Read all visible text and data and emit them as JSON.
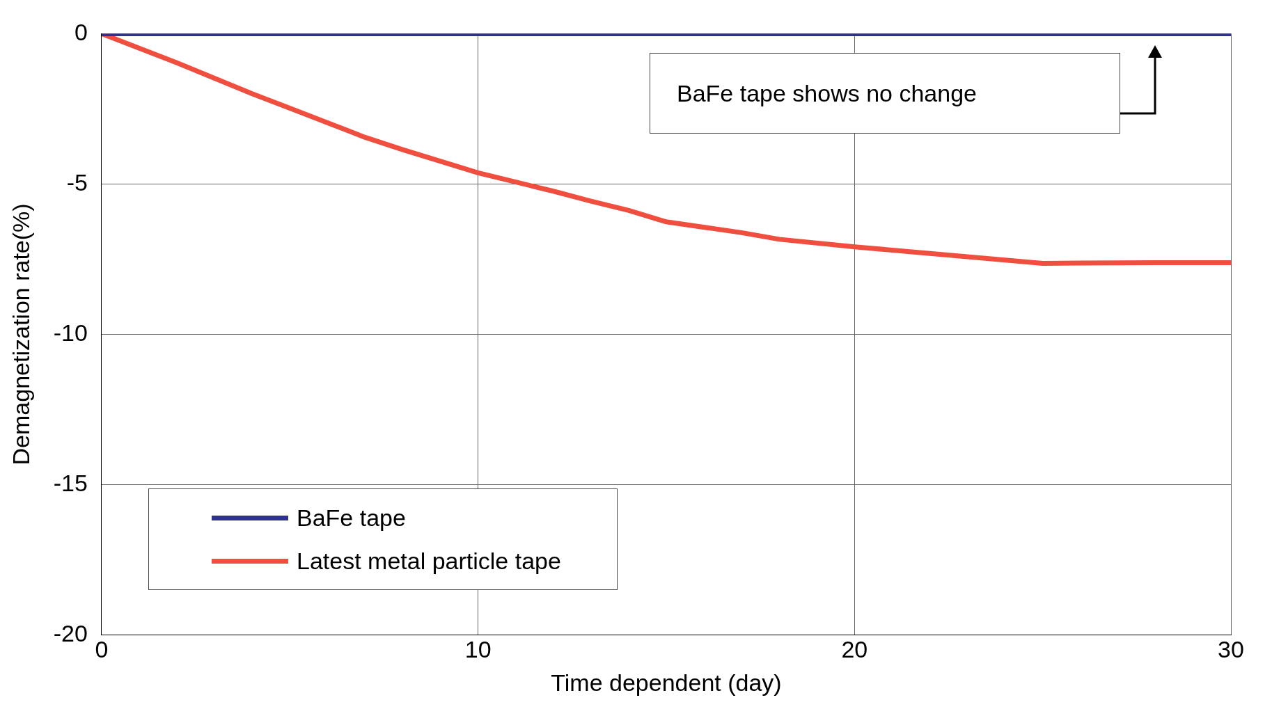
{
  "chart_data": {
    "type": "line",
    "xlabel": "Time dependent (day)",
    "ylabel": "Demagnetization rate(%)",
    "xlim": [
      0,
      30
    ],
    "xticks": [
      0,
      10,
      20,
      30
    ],
    "ylim": [
      -20,
      0
    ],
    "yticks": [
      -20,
      -15,
      -10,
      -5,
      0
    ],
    "grid": true,
    "legend": "bottom left",
    "marker": "none",
    "annotations": [
      "BaFe tape shows no change"
    ],
    "series": [
      {
        "name": "BaFe tape",
        "color": "#2e3192",
        "x": [
          0,
          30
        ],
        "values": [
          0,
          0
        ]
      },
      {
        "name": "Latest metal particle tape",
        "color": "#f04e3e",
        "x": [
          0,
          2,
          4,
          5,
          7,
          8,
          10,
          12,
          13,
          14,
          15,
          17,
          18,
          20,
          22,
          23,
          24,
          25,
          26,
          28,
          30
        ],
        "values": [
          0,
          -0.97,
          -2.0,
          -2.48,
          -3.45,
          -3.86,
          -4.63,
          -5.24,
          -5.57,
          -5.88,
          -6.26,
          -6.62,
          -6.84,
          -7.09,
          -7.31,
          -7.42,
          -7.53,
          -7.64,
          -7.63,
          -7.62,
          -7.62
        ]
      }
    ]
  }
}
